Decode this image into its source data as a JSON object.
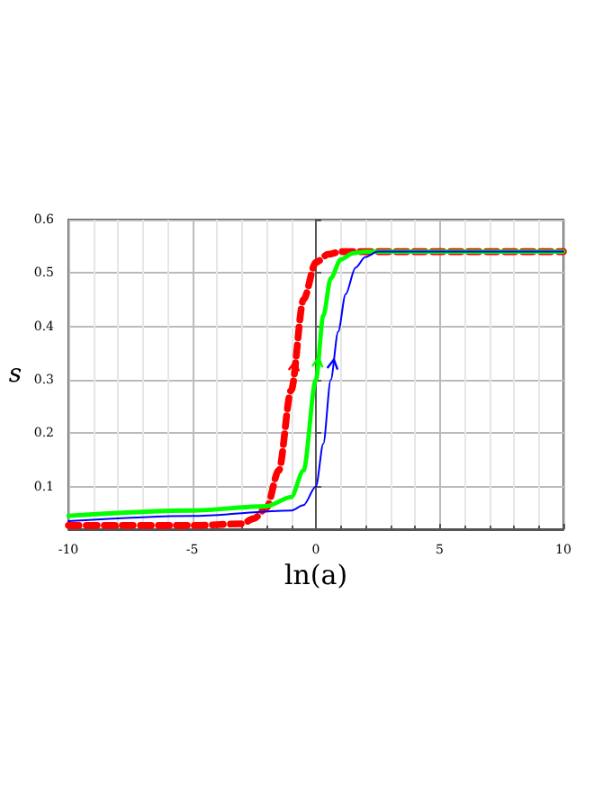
{
  "chart_data": {
    "type": "line",
    "xlabel": "ln(a)",
    "ylabel": "s",
    "xlim": [
      -10,
      10
    ],
    "xticks": [
      -10,
      -5,
      0,
      5,
      10
    ],
    "ylim": [
      0.02,
      0.6
    ],
    "yticks": [
      0.1,
      0.2,
      0.3,
      0.4,
      0.5,
      0.6
    ],
    "grid": true,
    "marker": "none",
    "series": [
      {
        "color": "#ff0000",
        "line_style": "dashed",
        "x": [
          -10,
          -5,
          -3,
          -2.5,
          -2,
          -1.5,
          -1,
          -0.5,
          0,
          0.5,
          1,
          10
        ],
        "values": [
          0.027,
          0.027,
          0.03,
          0.04,
          0.06,
          0.13,
          0.28,
          0.45,
          0.52,
          0.535,
          0.54,
          0.54
        ]
      },
      {
        "color": "#00ff00",
        "line_style": "solid",
        "x": [
          -10,
          -5,
          -2,
          -1,
          -0.5,
          0,
          0.3,
          0.6,
          1,
          1.5,
          2,
          10
        ],
        "values": [
          0.045,
          0.055,
          0.063,
          0.08,
          0.13,
          0.3,
          0.42,
          0.49,
          0.525,
          0.537,
          0.54,
          0.54
        ]
      },
      {
        "color": "#0000ff",
        "line_style": "solid",
        "x": [
          -10,
          -5,
          -1,
          -0.5,
          0,
          0.3,
          0.6,
          0.9,
          1.2,
          1.6,
          2,
          2.5,
          10
        ],
        "values": [
          0.035,
          0.045,
          0.055,
          0.065,
          0.1,
          0.18,
          0.3,
          0.39,
          0.46,
          0.51,
          0.53,
          0.54,
          0.54
        ]
      }
    ]
  }
}
